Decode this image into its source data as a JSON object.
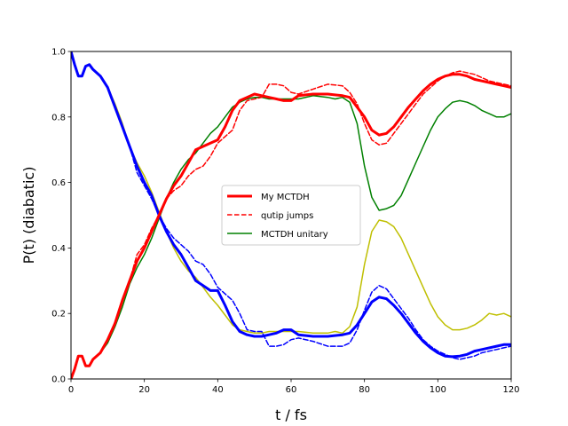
{
  "chart_data": {
    "type": "line",
    "xlabel": "t / fs",
    "ylabel": "P(t) (diabatic)",
    "xlim": [
      0,
      120
    ],
    "ylim": [
      0,
      1
    ],
    "xticks": [
      0,
      20,
      40,
      60,
      80,
      100,
      120
    ],
    "yticks": [
      0.0,
      0.2,
      0.4,
      0.6,
      0.8,
      1.0
    ],
    "xtick_labels": [
      "0",
      "20",
      "40",
      "60",
      "80",
      "100",
      "120"
    ],
    "ytick_labels": [
      "0.0",
      "0.2",
      "0.4",
      "0.6",
      "0.8",
      "1.0"
    ],
    "grid": false,
    "legend_position": "center",
    "legend": [
      {
        "label": "My MCTDH",
        "color": "#ff0000",
        "style": "solid-thick"
      },
      {
        "label": "qutip jumps",
        "color": "#ff0000",
        "style": "dashed"
      },
      {
        "label": "MCTDH unitary",
        "color": "#008000",
        "style": "solid"
      }
    ],
    "series": [
      {
        "name": "My MCTDH",
        "color": "#ff0000",
        "style": "solid-thick",
        "x": [
          0,
          1,
          2,
          3,
          4,
          5,
          6,
          8,
          10,
          12,
          14,
          16,
          18,
          20,
          22,
          24,
          26,
          28,
          30,
          32,
          34,
          36,
          38,
          40,
          42,
          44,
          46,
          48,
          50,
          52,
          54,
          56,
          58,
          60,
          62,
          66,
          70,
          74,
          76,
          78,
          80,
          82,
          84,
          86,
          88,
          90,
          92,
          94,
          96,
          98,
          100,
          102,
          104,
          106,
          108,
          110,
          112,
          114,
          116,
          118,
          120
        ],
        "y": [
          0.0,
          0.03,
          0.07,
          0.07,
          0.04,
          0.04,
          0.06,
          0.08,
          0.12,
          0.17,
          0.24,
          0.3,
          0.36,
          0.4,
          0.45,
          0.5,
          0.55,
          0.59,
          0.62,
          0.66,
          0.7,
          0.71,
          0.72,
          0.73,
          0.77,
          0.82,
          0.85,
          0.86,
          0.87,
          0.865,
          0.86,
          0.855,
          0.85,
          0.85,
          0.865,
          0.87,
          0.87,
          0.865,
          0.86,
          0.83,
          0.8,
          0.76,
          0.745,
          0.75,
          0.77,
          0.8,
          0.83,
          0.855,
          0.88,
          0.9,
          0.915,
          0.925,
          0.93,
          0.93,
          0.925,
          0.915,
          0.91,
          0.905,
          0.9,
          0.895,
          0.89
        ]
      },
      {
        "name": "qutip jumps",
        "color": "#ff0000",
        "style": "dashed",
        "x": [
          0,
          1,
          2,
          3,
          4,
          5,
          6,
          8,
          10,
          12,
          14,
          16,
          18,
          20,
          22,
          24,
          26,
          28,
          30,
          32,
          34,
          36,
          38,
          40,
          42,
          44,
          46,
          48,
          50,
          52,
          54,
          56,
          58,
          60,
          62,
          66,
          70,
          74,
          76,
          78,
          80,
          82,
          84,
          86,
          88,
          90,
          92,
          94,
          96,
          98,
          100,
          102,
          104,
          106,
          108,
          110,
          112,
          114,
          116,
          118,
          120
        ],
        "y": [
          0.0,
          0.03,
          0.07,
          0.07,
          0.04,
          0.04,
          0.06,
          0.08,
          0.12,
          0.17,
          0.24,
          0.3,
          0.38,
          0.41,
          0.46,
          0.5,
          0.55,
          0.575,
          0.59,
          0.62,
          0.64,
          0.65,
          0.68,
          0.72,
          0.74,
          0.76,
          0.82,
          0.85,
          0.855,
          0.86,
          0.9,
          0.9,
          0.895,
          0.875,
          0.87,
          0.885,
          0.9,
          0.895,
          0.875,
          0.84,
          0.78,
          0.73,
          0.715,
          0.72,
          0.75,
          0.78,
          0.81,
          0.84,
          0.87,
          0.89,
          0.91,
          0.925,
          0.935,
          0.94,
          0.935,
          0.93,
          0.92,
          0.91,
          0.905,
          0.9,
          0.895
        ]
      },
      {
        "name": "",
        "color": "#008000",
        "style": "solid",
        "x": [
          0,
          1,
          2,
          3,
          4,
          5,
          6,
          8,
          10,
          12,
          14,
          16,
          18,
          20,
          22,
          24,
          26,
          28,
          30,
          32,
          34,
          36,
          38,
          40,
          42,
          44,
          46,
          48,
          50,
          52,
          54,
          56,
          58,
          60,
          62,
          66,
          70,
          72,
          74,
          76,
          78,
          80,
          82,
          84,
          86,
          88,
          90,
          92,
          94,
          96,
          98,
          100,
          102,
          104,
          106,
          108,
          110,
          112,
          114,
          116,
          118,
          120
        ],
        "y": [
          0.0,
          0.03,
          0.07,
          0.07,
          0.04,
          0.04,
          0.06,
          0.08,
          0.11,
          0.16,
          0.22,
          0.29,
          0.34,
          0.38,
          0.43,
          0.49,
          0.55,
          0.6,
          0.64,
          0.67,
          0.69,
          0.72,
          0.75,
          0.77,
          0.8,
          0.83,
          0.845,
          0.855,
          0.86,
          0.86,
          0.855,
          0.855,
          0.855,
          0.855,
          0.855,
          0.865,
          0.86,
          0.855,
          0.86,
          0.845,
          0.78,
          0.65,
          0.555,
          0.515,
          0.52,
          0.53,
          0.56,
          0.61,
          0.66,
          0.71,
          0.76,
          0.8,
          0.825,
          0.845,
          0.85,
          0.845,
          0.835,
          0.82,
          0.81,
          0.8,
          0.8,
          0.81
        ]
      },
      {
        "name": "",
        "color": "#0000ff",
        "style": "solid-thick",
        "x": [
          0,
          1,
          2,
          3,
          4,
          5,
          6,
          8,
          10,
          12,
          14,
          16,
          18,
          20,
          22,
          24,
          26,
          28,
          30,
          32,
          34,
          36,
          38,
          40,
          42,
          44,
          46,
          48,
          50,
          52,
          54,
          56,
          58,
          60,
          62,
          66,
          70,
          74,
          76,
          78,
          80,
          82,
          84,
          86,
          88,
          90,
          92,
          94,
          96,
          98,
          100,
          102,
          104,
          106,
          108,
          110,
          112,
          114,
          116,
          118,
          120
        ],
        "y": [
          1.0,
          0.96,
          0.925,
          0.925,
          0.955,
          0.96,
          0.945,
          0.925,
          0.89,
          0.83,
          0.77,
          0.71,
          0.65,
          0.6,
          0.56,
          0.5,
          0.45,
          0.41,
          0.38,
          0.34,
          0.3,
          0.285,
          0.27,
          0.27,
          0.225,
          0.175,
          0.145,
          0.135,
          0.13,
          0.13,
          0.135,
          0.14,
          0.15,
          0.15,
          0.135,
          0.13,
          0.13,
          0.135,
          0.14,
          0.165,
          0.2,
          0.235,
          0.25,
          0.245,
          0.225,
          0.2,
          0.17,
          0.14,
          0.115,
          0.095,
          0.08,
          0.07,
          0.068,
          0.07,
          0.075,
          0.085,
          0.09,
          0.095,
          0.1,
          0.105,
          0.105
        ]
      },
      {
        "name": "",
        "color": "#0000ff",
        "style": "dashed",
        "x": [
          0,
          1,
          2,
          3,
          4,
          5,
          6,
          8,
          10,
          12,
          14,
          16,
          18,
          20,
          22,
          24,
          26,
          28,
          30,
          32,
          34,
          36,
          38,
          40,
          42,
          44,
          46,
          48,
          50,
          52,
          54,
          56,
          58,
          60,
          62,
          66,
          70,
          74,
          76,
          78,
          80,
          82,
          84,
          86,
          88,
          90,
          92,
          94,
          96,
          98,
          100,
          102,
          104,
          106,
          108,
          110,
          112,
          114,
          116,
          118,
          120
        ],
        "y": [
          1.0,
          0.96,
          0.925,
          0.925,
          0.955,
          0.96,
          0.945,
          0.925,
          0.89,
          0.83,
          0.77,
          0.71,
          0.63,
          0.59,
          0.55,
          0.5,
          0.46,
          0.43,
          0.41,
          0.39,
          0.36,
          0.35,
          0.32,
          0.28,
          0.26,
          0.24,
          0.2,
          0.15,
          0.145,
          0.145,
          0.1,
          0.1,
          0.105,
          0.12,
          0.125,
          0.115,
          0.1,
          0.1,
          0.11,
          0.15,
          0.21,
          0.265,
          0.285,
          0.275,
          0.245,
          0.215,
          0.185,
          0.15,
          0.12,
          0.1,
          0.085,
          0.075,
          0.065,
          0.06,
          0.065,
          0.07,
          0.08,
          0.085,
          0.09,
          0.095,
          0.1
        ]
      },
      {
        "name": "",
        "color": "#bfbf00",
        "style": "solid",
        "x": [
          0,
          1,
          2,
          3,
          4,
          5,
          6,
          8,
          10,
          12,
          14,
          16,
          18,
          20,
          22,
          24,
          26,
          28,
          30,
          32,
          34,
          36,
          38,
          40,
          42,
          44,
          46,
          48,
          50,
          52,
          54,
          56,
          58,
          60,
          62,
          66,
          70,
          72,
          74,
          76,
          78,
          80,
          82,
          84,
          86,
          88,
          90,
          92,
          94,
          96,
          98,
          100,
          102,
          104,
          106,
          108,
          110,
          112,
          114,
          116,
          118,
          120
        ],
        "y": [
          1.0,
          0.96,
          0.925,
          0.925,
          0.955,
          0.96,
          0.945,
          0.925,
          0.89,
          0.84,
          0.78,
          0.71,
          0.66,
          0.62,
          0.57,
          0.51,
          0.45,
          0.4,
          0.36,
          0.33,
          0.31,
          0.28,
          0.25,
          0.225,
          0.195,
          0.165,
          0.15,
          0.145,
          0.14,
          0.14,
          0.145,
          0.145,
          0.145,
          0.145,
          0.145,
          0.14,
          0.14,
          0.145,
          0.14,
          0.16,
          0.22,
          0.35,
          0.45,
          0.485,
          0.48,
          0.465,
          0.43,
          0.38,
          0.33,
          0.28,
          0.23,
          0.19,
          0.165,
          0.15,
          0.15,
          0.155,
          0.165,
          0.18,
          0.2,
          0.195,
          0.2,
          0.19
        ]
      }
    ]
  }
}
